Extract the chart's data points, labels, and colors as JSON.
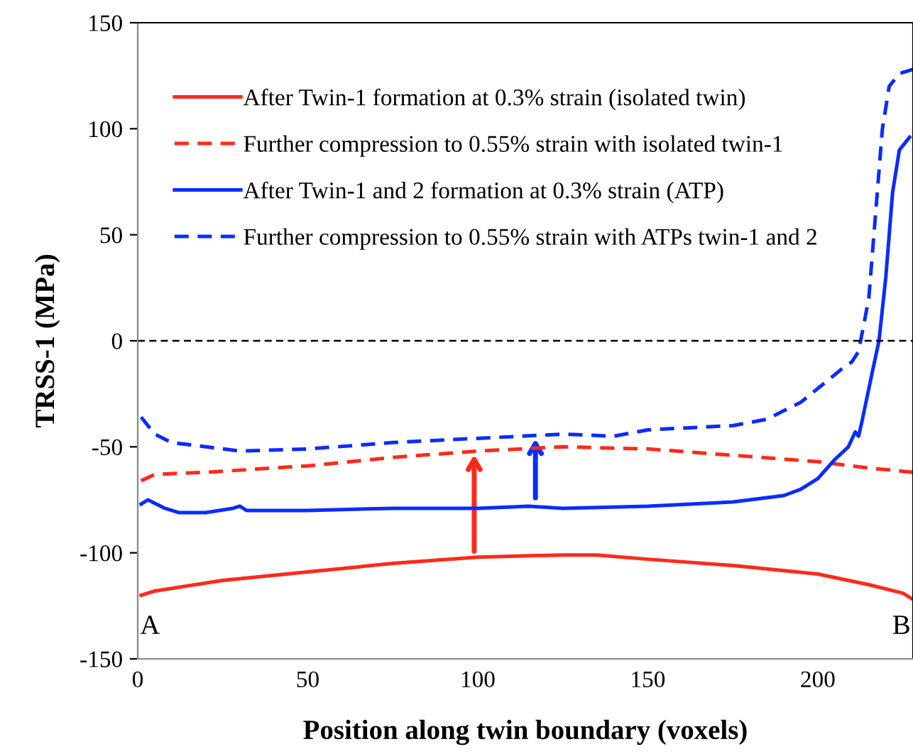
{
  "chart_data": {
    "type": "line",
    "xlabel": "Position along twin boundary (voxels)",
    "ylabel": "TRSS-1 (MPa)",
    "xlim": [
      0,
      228
    ],
    "xticks": [
      0,
      50,
      100,
      150,
      200
    ],
    "ylim": [
      -150,
      150
    ],
    "yticks": [
      -150,
      -100,
      -50,
      0,
      50,
      100,
      150
    ],
    "grid": false,
    "legend": "top left",
    "ref_lines": [
      {
        "axis": "y",
        "value": 0,
        "color": "#000000",
        "line_style": "dashed"
      }
    ],
    "annotations": [
      "A",
      "B"
    ],
    "series": [
      {
        "name": "After Twin-1 formation at 0.3% strain (isolated twin)",
        "color": "#ff2a1a",
        "line_style": "solid",
        "x": [
          1,
          5,
          25,
          50,
          75,
          100,
          125,
          135,
          150,
          175,
          200,
          215,
          225,
          228
        ],
        "values": [
          -120,
          -118,
          -113,
          -109,
          -105,
          -102,
          -101,
          -101,
          -103,
          -106,
          -110,
          -115,
          -119,
          -122
        ]
      },
      {
        "name": "Further compression to 0.55% strain with isolated twin-1",
        "color": "#ff2a1a",
        "line_style": "dashed",
        "x": [
          1,
          5,
          20,
          50,
          75,
          100,
          125,
          150,
          175,
          200,
          215,
          228
        ],
        "values": [
          -66,
          -63,
          -62,
          -59,
          -55,
          -52,
          -50,
          -51,
          -54,
          -57,
          -60,
          -62
        ]
      },
      {
        "name": "After Twin-1 and 2 formation at 0.3% strain (ATP)",
        "color": "#0a2cff",
        "line_style": "solid",
        "x": [
          1,
          3,
          8,
          12,
          20,
          28,
          30,
          32,
          50,
          75,
          100,
          115,
          125,
          150,
          175,
          190,
          195,
          200,
          205,
          209,
          211,
          212,
          213,
          216,
          218,
          220,
          222,
          224,
          227
        ],
        "values": [
          -77,
          -75,
          -79,
          -81,
          -81,
          -79,
          -78,
          -80,
          -80,
          -79,
          -79,
          -78,
          -79,
          -78,
          -76,
          -73,
          -70,
          -65,
          -56,
          -50,
          -43,
          -45,
          -38,
          -15,
          0,
          30,
          70,
          90,
          96
        ]
      },
      {
        "name": "Further compression to 0.55% strain with ATPs twin-1 and 2",
        "color": "#0a2cff",
        "line_style": "dashed",
        "x": [
          1,
          5,
          10,
          15,
          30,
          50,
          75,
          100,
          125,
          140,
          150,
          175,
          185,
          195,
          205,
          208,
          210,
          212,
          215,
          217,
          219,
          221,
          224,
          228
        ],
        "values": [
          -36,
          -44,
          -48,
          -49,
          -52,
          -51,
          -48,
          -46,
          -44,
          -45,
          -42,
          -40,
          -37,
          -29,
          -16,
          -12,
          -10,
          -5,
          20,
          60,
          100,
          120,
          126,
          128
        ]
      }
    ]
  }
}
